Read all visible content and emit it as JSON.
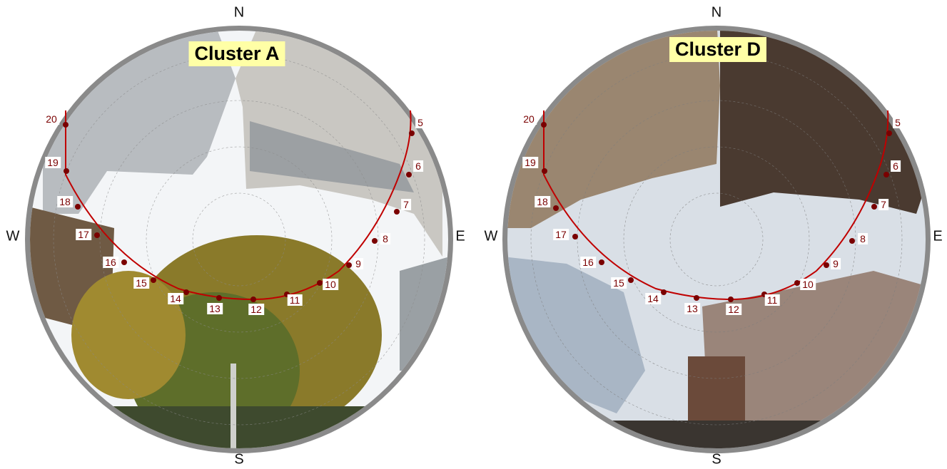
{
  "compass": {
    "north": "N",
    "south": "S",
    "west": "W",
    "east": "E"
  },
  "panels": [
    {
      "label": "Cluster A",
      "hours": [
        "5",
        "6",
        "7",
        "8",
        "9",
        "10",
        "11",
        "12",
        "13",
        "14",
        "15",
        "16",
        "17",
        "18",
        "19",
        "20"
      ],
      "colors": {
        "rim": "#8a8a8a",
        "sky": "#f3f5f7",
        "building": "#b8bcc0",
        "building_dark": "#6f767c",
        "tree": "#8a7a2a",
        "tree_green": "#5e6e2a",
        "ground": "#3e4a2e",
        "sun_path": "#c00000",
        "dot": "#7a0000"
      }
    },
    {
      "label": "Cluster D",
      "hours": [
        "5",
        "6",
        "7",
        "8",
        "9",
        "10",
        "11",
        "12",
        "13",
        "14",
        "15",
        "16",
        "17",
        "18",
        "19",
        "20"
      ],
      "colors": {
        "rim": "#8a8a8a",
        "sky": "#d9dfe6",
        "building": "#9a8670",
        "building_dark": "#4a3a30",
        "facade": "#a9b6c5",
        "street": "#3a3530",
        "sun_path": "#c00000",
        "dot": "#7a0000"
      }
    }
  ]
}
